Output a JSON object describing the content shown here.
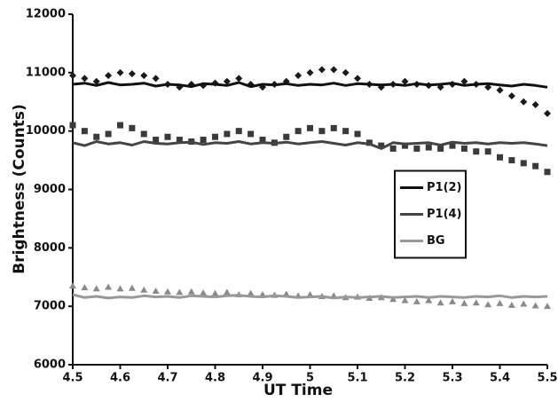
{
  "chart_data": {
    "type": "line",
    "xlabel": "UT Time",
    "ylabel": "Brightness (Counts)",
    "x": [
      4.5,
      4.525,
      4.55,
      4.575,
      4.6,
      4.625,
      4.65,
      4.675,
      4.7,
      4.725,
      4.75,
      4.775,
      4.8,
      4.825,
      4.85,
      4.875,
      4.9,
      4.925,
      4.95,
      4.975,
      5.0,
      5.025,
      5.05,
      5.075,
      5.1,
      5.125,
      5.15,
      5.175,
      5.2,
      5.225,
      5.25,
      5.275,
      5.3,
      5.325,
      5.35,
      5.375,
      5.4,
      5.425,
      5.45,
      5.475,
      5.5
    ],
    "xlim": [
      4.5,
      5.5
    ],
    "xticks": [
      4.5,
      4.6,
      4.7,
      4.8,
      4.9,
      5,
      5.1,
      5.2,
      5.3,
      5.4,
      5.5
    ],
    "ylim": [
      6000,
      12000
    ],
    "yticks": [
      6000,
      7000,
      8000,
      9000,
      10000,
      11000,
      12000
    ],
    "legend": "right",
    "series": [
      {
        "style": "markers",
        "marker": "diamond",
        "color": "#1a1a1a",
        "values": [
          10950,
          10900,
          10850,
          10950,
          11000,
          10980,
          10950,
          10900,
          10800,
          10750,
          10800,
          10780,
          10820,
          10850,
          10900,
          10800,
          10750,
          10800,
          10850,
          10950,
          11000,
          11050,
          11050,
          11000,
          10900,
          10800,
          10750,
          10800,
          10850,
          10800,
          10780,
          10750,
          10800,
          10850,
          10800,
          10750,
          10700,
          10600,
          10500,
          10450,
          10300
        ]
      },
      {
        "style": "markers",
        "marker": "square",
        "color": "#3a3a3a",
        "values": [
          10100,
          10000,
          9900,
          9950,
          10100,
          10050,
          9950,
          9850,
          9900,
          9850,
          9820,
          9850,
          9900,
          9950,
          10000,
          9950,
          9850,
          9800,
          9900,
          10000,
          10050,
          10000,
          10050,
          10000,
          9950,
          9800,
          9750,
          9700,
          9750,
          9700,
          9720,
          9700,
          9750,
          9700,
          9650,
          9650,
          9550,
          9500,
          9450,
          9400,
          9300
        ]
      },
      {
        "style": "markers",
        "marker": "triangle",
        "color": "#8a8a8a",
        "values": [
          7350,
          7320,
          7300,
          7330,
          7300,
          7310,
          7280,
          7260,
          7250,
          7240,
          7250,
          7230,
          7220,
          7240,
          7200,
          7220,
          7200,
          7190,
          7210,
          7180,
          7200,
          7170,
          7180,
          7150,
          7160,
          7140,
          7150,
          7120,
          7100,
          7080,
          7100,
          7060,
          7080,
          7050,
          7060,
          7030,
          7050,
          7020,
          7040,
          7010,
          7000
        ]
      },
      {
        "style": "line",
        "name": "P1(2)",
        "color": "#111111",
        "values": [
          10800,
          10820,
          10780,
          10830,
          10790,
          10800,
          10820,
          10770,
          10800,
          10790,
          10760,
          10810,
          10800,
          10780,
          10830,
          10760,
          10800,
          10790,
          10810,
          10780,
          10800,
          10790,
          10820,
          10780,
          10810,
          10800,
          10790,
          10800,
          10780,
          10810,
          10790,
          10800,
          10820,
          10780,
          10800,
          10810,
          10790,
          10770,
          10800,
          10780,
          10750
        ]
      },
      {
        "style": "line",
        "name": "P1(4)",
        "color": "#444444",
        "values": [
          9800,
          9750,
          9820,
          9780,
          9800,
          9760,
          9820,
          9790,
          9780,
          9800,
          9810,
          9770,
          9800,
          9790,
          9820,
          9780,
          9800,
          9790,
          9810,
          9780,
          9800,
          9820,
          9790,
          9760,
          9800,
          9780,
          9700,
          9800,
          9780,
          9790,
          9800,
          9760,
          9810,
          9790,
          9800,
          9780,
          9800,
          9790,
          9800,
          9780,
          9750
        ]
      },
      {
        "style": "line",
        "name": "BG",
        "color": "#999999",
        "values": [
          7200,
          7150,
          7170,
          7140,
          7160,
          7150,
          7180,
          7160,
          7170,
          7150,
          7180,
          7170,
          7160,
          7180,
          7190,
          7170,
          7160,
          7180,
          7170,
          7150,
          7160,
          7170,
          7140,
          7160,
          7150,
          7160,
          7170,
          7150,
          7160,
          7170,
          7150,
          7170,
          7160,
          7150,
          7170,
          7160,
          7180,
          7150,
          7170,
          7160,
          7170
        ]
      }
    ]
  }
}
